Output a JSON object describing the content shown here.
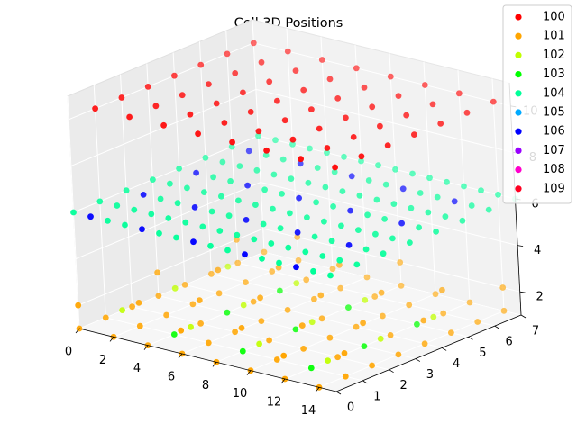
{
  "chart_data": {
    "type": "scatter",
    "projection": "3d",
    "title": "Cell 3D Positions",
    "xlabel": "",
    "ylabel": "",
    "zlabel": "",
    "x_ticks": [
      "0",
      "2",
      "4",
      "6",
      "8",
      "10",
      "12",
      "14"
    ],
    "y_ticks": [
      "0",
      "1",
      "2",
      "3",
      "4",
      "5",
      "6",
      "7"
    ],
    "z_ticks": [
      "2",
      "4",
      "6",
      "8",
      "10"
    ],
    "xlim": [
      0,
      15
    ],
    "ylim": [
      0,
      7
    ],
    "zlim": [
      1,
      11
    ],
    "grid": true,
    "legend_position": "top-right",
    "series": [
      {
        "name": "100",
        "color": "#ff0000",
        "layers": [
          {
            "z": 10,
            "x": [
              0,
              14
            ],
            "y": [
              1,
              7
            ],
            "dx": 2,
            "dy": 1,
            "rule": "all"
          }
        ]
      },
      {
        "name": "101",
        "color": "#ffa500",
        "layers": [
          {
            "z": 1,
            "x": [
              0,
              14
            ],
            "y": [
              0,
              7
            ],
            "dx": 2,
            "dy": 1,
            "rule": "except103"
          },
          {
            "z": 2,
            "x": [
              0,
              14
            ],
            "y": [
              0,
              7
            ],
            "dx": 2,
            "dy": 1,
            "rule": "sparse"
          }
        ]
      },
      {
        "name": "102",
        "color": "#c0ff00",
        "layers": [
          {
            "z": 1.5,
            "x": [
              1,
              13
            ],
            "y": [
              1,
              6
            ],
            "dx": 4,
            "dy": 2,
            "rule": "all"
          }
        ]
      },
      {
        "name": "103",
        "color": "#00ff00",
        "layers": [
          {
            "z": 1,
            "x": [
              4,
              12
            ],
            "y": [
              1,
              5
            ],
            "dx": 4,
            "dy": 2,
            "rule": "all"
          }
        ]
      },
      {
        "name": "104",
        "color": "#00ff99",
        "layers": [
          {
            "z": 6,
            "x": [
              0,
              15
            ],
            "y": [
              0,
              7
            ],
            "dx": 1,
            "dy": 1,
            "rule": "except106"
          }
        ]
      },
      {
        "name": "105",
        "color": "#00aaff",
        "layers": []
      },
      {
        "name": "106",
        "color": "#0000ff",
        "layers": [
          {
            "z": 6,
            "x": [
              1,
              13
            ],
            "y": [
              0,
              6
            ],
            "dx": 3,
            "dy": 2,
            "rule": "all"
          }
        ]
      },
      {
        "name": "107",
        "color": "#9900ff",
        "layers": []
      },
      {
        "name": "108",
        "color": "#ff00cc",
        "layers": []
      },
      {
        "name": "109",
        "color": "#ff0022",
        "layers": []
      }
    ]
  }
}
